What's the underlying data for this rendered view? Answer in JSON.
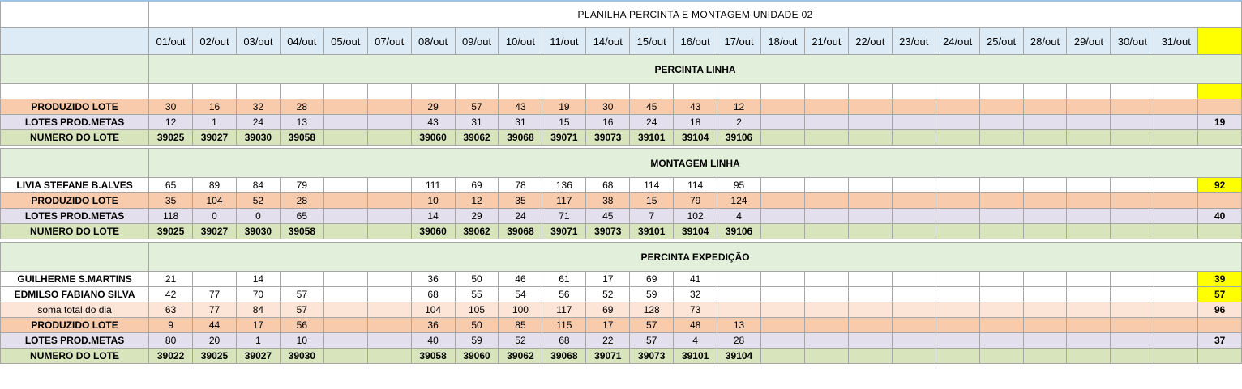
{
  "title": "PLANILHA PERCINTA E MONTAGEM UNIDADE 02",
  "dates": [
    "01/out",
    "02/out",
    "03/out",
    "04/out",
    "05/out",
    "07/out",
    "08/out",
    "09/out",
    "10/out",
    "11/out",
    "14/out",
    "15/out",
    "16/out",
    "17/out",
    "18/out",
    "21/out",
    "22/out",
    "23/out",
    "24/out",
    "25/out",
    "28/out",
    "29/out",
    "30/out",
    "31/out"
  ],
  "colors": {
    "yellow": "#ffff00",
    "orange": "#f8cbad",
    "purple": "#e4dfec",
    "green": "#d8e4bc",
    "header_blue": "#ddebf7",
    "section_green": "#e2efda",
    "peach": "#fce4d6"
  },
  "sections": [
    {
      "title": "PERCINTA LINHA",
      "blank_row": true,
      "rows": [
        {
          "label": "PRODUZIDO LOTE",
          "style": "orange",
          "values": [
            "30",
            "16",
            "32",
            "28",
            "",
            "",
            "29",
            "57",
            "43",
            "19",
            "30",
            "45",
            "43",
            "12",
            "",
            "",
            "",
            "",
            "",
            "",
            "",
            "",
            "",
            ""
          ],
          "total": ""
        },
        {
          "label": "LOTES PROD.METAS",
          "style": "purple",
          "values": [
            "12",
            "1",
            "24",
            "13",
            "",
            "",
            "43",
            "31",
            "31",
            "15",
            "16",
            "24",
            "18",
            "2",
            "",
            "",
            "",
            "",
            "",
            "",
            "",
            "",
            "",
            ""
          ],
          "total": "19"
        },
        {
          "label": "NUMERO DO LOTE",
          "style": "green",
          "values": [
            "39025",
            "39027",
            "39030",
            "39058",
            "",
            "",
            "39060",
            "39062",
            "39068",
            "39071",
            "39073",
            "39101",
            "39104",
            "39106",
            "",
            "",
            "",
            "",
            "",
            "",
            "",
            "",
            "",
            ""
          ],
          "total": ""
        }
      ]
    },
    {
      "title": "MONTAGEM LINHA",
      "blank_row": false,
      "rows": [
        {
          "label": "LIVIA STEFANE B.ALVES",
          "style": "white",
          "values": [
            "65",
            "89",
            "84",
            "79",
            "",
            "",
            "111",
            "69",
            "78",
            "136",
            "68",
            "114",
            "114",
            "95",
            "",
            "",
            "",
            "",
            "",
            "",
            "",
            "",
            "",
            ""
          ],
          "total": "92",
          "yellow": true
        },
        {
          "label": "PRODUZIDO LOTE",
          "style": "orange",
          "values": [
            "35",
            "104",
            "52",
            "28",
            "",
            "",
            "10",
            "12",
            "35",
            "117",
            "38",
            "15",
            "79",
            "124",
            "",
            "",
            "",
            "",
            "",
            "",
            "",
            "",
            "",
            ""
          ],
          "total": ""
        },
        {
          "label": "LOTES PROD.METAS",
          "style": "purple",
          "values": [
            "118",
            "0",
            "0",
            "65",
            "",
            "",
            "14",
            "29",
            "24",
            "71",
            "45",
            "7",
            "102",
            "4",
            "",
            "",
            "",
            "",
            "",
            "",
            "",
            "",
            "",
            ""
          ],
          "total": "40"
        },
        {
          "label": "NUMERO DO LOTE",
          "style": "green",
          "values": [
            "39025",
            "39027",
            "39030",
            "39058",
            "",
            "",
            "39060",
            "39062",
            "39068",
            "39071",
            "39073",
            "39101",
            "39104",
            "39106",
            "",
            "",
            "",
            "",
            "",
            "",
            "",
            "",
            "",
            ""
          ],
          "total": ""
        }
      ]
    },
    {
      "title": "PERCINTA EXPEDIÇÃO",
      "blank_row": false,
      "rows": [
        {
          "label": "GUILHERME S.MARTINS",
          "style": "white",
          "values": [
            "21",
            "",
            "14",
            "",
            "",
            "",
            "36",
            "50",
            "46",
            "61",
            "17",
            "69",
            "41",
            "",
            "",
            "",
            "",
            "",
            "",
            "",
            "",
            "",
            "",
            ""
          ],
          "total": "39",
          "yellow": true
        },
        {
          "label": "EDMILSO FABIANO SILVA",
          "style": "white",
          "values": [
            "42",
            "77",
            "70",
            "57",
            "",
            "",
            "68",
            "55",
            "54",
            "56",
            "52",
            "59",
            "32",
            "",
            "",
            "",
            "",
            "",
            "",
            "",
            "",
            "",
            "",
            ""
          ],
          "total": "57",
          "yellow": true
        },
        {
          "label": "soma total  do dia",
          "style": "peach",
          "values": [
            "63",
            "77",
            "84",
            "57",
            "",
            "",
            "104",
            "105",
            "100",
            "117",
            "69",
            "128",
            "73",
            "",
            "",
            "",
            "",
            "",
            "",
            "",
            "",
            "",
            "",
            ""
          ],
          "total": "96"
        },
        {
          "label": "PRODUZIDO LOTE",
          "style": "orange",
          "values": [
            "9",
            "44",
            "17",
            "56",
            "",
            "",
            "36",
            "50",
            "85",
            "115",
            "17",
            "57",
            "48",
            "13",
            "",
            "",
            "",
            "",
            "",
            "",
            "",
            "",
            "",
            ""
          ],
          "total": ""
        },
        {
          "label": "LOTES PROD.METAS",
          "style": "purple",
          "values": [
            "80",
            "20",
            "1",
            "10",
            "",
            "",
            "40",
            "59",
            "52",
            "68",
            "22",
            "57",
            "4",
            "28",
            "",
            "",
            "",
            "",
            "",
            "",
            "",
            "",
            "",
            ""
          ],
          "total": "37"
        },
        {
          "label": "NUMERO DO LOTE",
          "style": "green",
          "values": [
            "39022",
            "39025",
            "39027",
            "39030",
            "",
            "",
            "39058",
            "39060",
            "39062",
            "39068",
            "39071",
            "39073",
            "39101",
            "39104",
            "",
            "",
            "",
            "",
            "",
            "",
            "",
            "",
            "",
            ""
          ],
          "total": ""
        }
      ]
    }
  ]
}
